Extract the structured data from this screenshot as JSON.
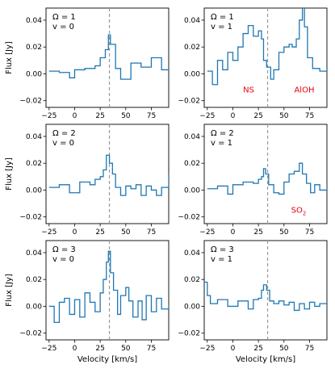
{
  "chart_data": {
    "type": "line",
    "style": {
      "line_color": "#1f77b4",
      "vline_color": "#999999",
      "annotation_color": "#e8000b",
      "linestyle": "steps"
    },
    "xlim": [
      -28,
      92
    ],
    "ylim": [
      -0.025,
      0.049
    ],
    "xticks": [
      -25,
      0,
      25,
      50,
      75
    ],
    "xtick_labels": [
      "−25",
      "0",
      "25",
      "50",
      "75"
    ],
    "yticks": [
      -0.02,
      0.0,
      0.02,
      0.04
    ],
    "ytick_labels": [
      "−0.02",
      "0.00",
      "0.02",
      "0.04"
    ],
    "xlabel": "Velocity [km/s]",
    "ylabel": "Flux [Jy]",
    "vline_x": 34,
    "panels": [
      {
        "title_lines": [
          "Ω = 1",
          "v = 0"
        ],
        "annotations": [],
        "series": [
          {
            "x": -25,
            "y": 0.002
          },
          {
            "x": -15,
            "y": 0.001
          },
          {
            "x": -5,
            "y": -0.003
          },
          {
            "x": 0,
            "y": 0.003
          },
          {
            "x": 10,
            "y": 0.004
          },
          {
            "x": 20,
            "y": 0.006
          },
          {
            "x": 25,
            "y": 0.012
          },
          {
            "x": 30,
            "y": 0.018
          },
          {
            "x": 33,
            "y": 0.029
          },
          {
            "x": 35,
            "y": 0.022
          },
          {
            "x": 40,
            "y": 0.004
          },
          {
            "x": 45,
            "y": -0.004
          },
          {
            "x": 55,
            "y": 0.008
          },
          {
            "x": 65,
            "y": 0.005
          },
          {
            "x": 75,
            "y": 0.012
          },
          {
            "x": 85,
            "y": 0.003
          },
          {
            "x": 92,
            "y": 0.004
          }
        ]
      },
      {
        "title_lines": [
          "Ω = 1",
          "v = 1"
        ],
        "annotations": [
          {
            "text": "NS",
            "x": 10,
            "y": -0.014
          },
          {
            "text": "AlOH",
            "x": 60,
            "y": -0.014
          }
        ],
        "series": [
          {
            "x": -25,
            "y": 0.002
          },
          {
            "x": -20,
            "y": -0.008
          },
          {
            "x": -15,
            "y": 0.01
          },
          {
            "x": -10,
            "y": 0.003
          },
          {
            "x": -5,
            "y": 0.016
          },
          {
            "x": 0,
            "y": 0.01
          },
          {
            "x": 5,
            "y": 0.02
          },
          {
            "x": 10,
            "y": 0.03
          },
          {
            "x": 15,
            "y": 0.036
          },
          {
            "x": 20,
            "y": 0.028
          },
          {
            "x": 25,
            "y": 0.032
          },
          {
            "x": 28,
            "y": 0.026
          },
          {
            "x": 30,
            "y": 0.01
          },
          {
            "x": 33,
            "y": 0.005
          },
          {
            "x": 37,
            "y": -0.004
          },
          {
            "x": 40,
            "y": 0.003
          },
          {
            "x": 45,
            "y": 0.016
          },
          {
            "x": 50,
            "y": 0.02
          },
          {
            "x": 55,
            "y": 0.022
          },
          {
            "x": 58,
            "y": 0.02
          },
          {
            "x": 62,
            "y": 0.026
          },
          {
            "x": 65,
            "y": 0.04
          },
          {
            "x": 68,
            "y": 0.049
          },
          {
            "x": 70,
            "y": 0.035
          },
          {
            "x": 73,
            "y": 0.012
          },
          {
            "x": 78,
            "y": 0.004
          },
          {
            "x": 85,
            "y": 0.002
          },
          {
            "x": 92,
            "y": 0.004
          }
        ]
      },
      {
        "title_lines": [
          "Ω = 2",
          "v = 0"
        ],
        "annotations": [],
        "series": [
          {
            "x": -25,
            "y": 0.002
          },
          {
            "x": -15,
            "y": 0.004
          },
          {
            "x": -5,
            "y": -0.002
          },
          {
            "x": 5,
            "y": 0.006
          },
          {
            "x": 15,
            "y": 0.004
          },
          {
            "x": 20,
            "y": 0.008
          },
          {
            "x": 25,
            "y": 0.01
          },
          {
            "x": 28,
            "y": 0.015
          },
          {
            "x": 31,
            "y": 0.026
          },
          {
            "x": 34,
            "y": 0.02
          },
          {
            "x": 37,
            "y": 0.012
          },
          {
            "x": 40,
            "y": 0.002
          },
          {
            "x": 45,
            "y": -0.004
          },
          {
            "x": 50,
            "y": 0.003
          },
          {
            "x": 55,
            "y": 0.001
          },
          {
            "x": 60,
            "y": 0.004
          },
          {
            "x": 65,
            "y": -0.004
          },
          {
            "x": 70,
            "y": 0.003
          },
          {
            "x": 75,
            "y": 0.0
          },
          {
            "x": 80,
            "y": -0.004
          },
          {
            "x": 85,
            "y": 0.002
          },
          {
            "x": 92,
            "y": 0.012
          }
        ]
      },
      {
        "title_lines": [
          "Ω = 2",
          "v = 1"
        ],
        "annotations": [
          {
            "text": "SO",
            "sub": "2",
            "x": 57,
            "y": -0.017
          }
        ],
        "series": [
          {
            "x": -25,
            "y": 0.001
          },
          {
            "x": -15,
            "y": 0.003
          },
          {
            "x": -5,
            "y": -0.003
          },
          {
            "x": 0,
            "y": 0.004
          },
          {
            "x": 10,
            "y": 0.006
          },
          {
            "x": 20,
            "y": 0.005
          },
          {
            "x": 25,
            "y": 0.008
          },
          {
            "x": 28,
            "y": 0.01
          },
          {
            "x": 30,
            "y": 0.016
          },
          {
            "x": 32,
            "y": 0.012
          },
          {
            "x": 35,
            "y": 0.004
          },
          {
            "x": 40,
            "y": -0.002
          },
          {
            "x": 45,
            "y": -0.003
          },
          {
            "x": 50,
            "y": 0.006
          },
          {
            "x": 55,
            "y": 0.012
          },
          {
            "x": 60,
            "y": 0.014
          },
          {
            "x": 65,
            "y": 0.02
          },
          {
            "x": 68,
            "y": 0.012
          },
          {
            "x": 72,
            "y": 0.005
          },
          {
            "x": 76,
            "y": -0.002
          },
          {
            "x": 80,
            "y": 0.004
          },
          {
            "x": 85,
            "y": 0.0
          },
          {
            "x": 92,
            "y": 0.004
          }
        ]
      },
      {
        "title_lines": [
          "Ω = 3",
          "v = 0"
        ],
        "annotations": [],
        "series": [
          {
            "x": -25,
            "y": 0.0
          },
          {
            "x": -20,
            "y": -0.012
          },
          {
            "x": -15,
            "y": 0.003
          },
          {
            "x": -10,
            "y": 0.006
          },
          {
            "x": -5,
            "y": -0.006
          },
          {
            "x": 0,
            "y": 0.005
          },
          {
            "x": 5,
            "y": -0.008
          },
          {
            "x": 10,
            "y": 0.01
          },
          {
            "x": 15,
            "y": 0.003
          },
          {
            "x": 20,
            "y": -0.004
          },
          {
            "x": 25,
            "y": 0.01
          },
          {
            "x": 28,
            "y": 0.02
          },
          {
            "x": 31,
            "y": 0.033
          },
          {
            "x": 33,
            "y": 0.041
          },
          {
            "x": 35,
            "y": 0.025
          },
          {
            "x": 38,
            "y": 0.012
          },
          {
            "x": 42,
            "y": -0.006
          },
          {
            "x": 45,
            "y": 0.008
          },
          {
            "x": 50,
            "y": 0.014
          },
          {
            "x": 53,
            "y": 0.004
          },
          {
            "x": 57,
            "y": -0.008
          },
          {
            "x": 62,
            "y": 0.004
          },
          {
            "x": 66,
            "y": -0.01
          },
          {
            "x": 70,
            "y": 0.008
          },
          {
            "x": 75,
            "y": -0.004
          },
          {
            "x": 80,
            "y": 0.006
          },
          {
            "x": 85,
            "y": -0.002
          },
          {
            "x": 92,
            "y": 0.002
          }
        ]
      },
      {
        "title_lines": [
          "Ω = 3",
          "v = 1"
        ],
        "annotations": [],
        "series": [
          {
            "x": -28,
            "y": 0.018
          },
          {
            "x": -25,
            "y": 0.008
          },
          {
            "x": -22,
            "y": 0.002
          },
          {
            "x": -15,
            "y": 0.005
          },
          {
            "x": -5,
            "y": 0.0
          },
          {
            "x": 5,
            "y": 0.004
          },
          {
            "x": 15,
            "y": -0.002
          },
          {
            "x": 20,
            "y": 0.005
          },
          {
            "x": 25,
            "y": 0.006
          },
          {
            "x": 28,
            "y": 0.012
          },
          {
            "x": 30,
            "y": 0.016
          },
          {
            "x": 33,
            "y": 0.012
          },
          {
            "x": 36,
            "y": 0.004
          },
          {
            "x": 40,
            "y": 0.002
          },
          {
            "x": 45,
            "y": 0.004
          },
          {
            "x": 50,
            "y": 0.001
          },
          {
            "x": 55,
            "y": 0.003
          },
          {
            "x": 60,
            "y": -0.003
          },
          {
            "x": 65,
            "y": 0.002
          },
          {
            "x": 70,
            "y": -0.002
          },
          {
            "x": 75,
            "y": 0.003
          },
          {
            "x": 80,
            "y": 0.0
          },
          {
            "x": 85,
            "y": 0.002
          },
          {
            "x": 92,
            "y": 0.001
          }
        ]
      }
    ]
  }
}
